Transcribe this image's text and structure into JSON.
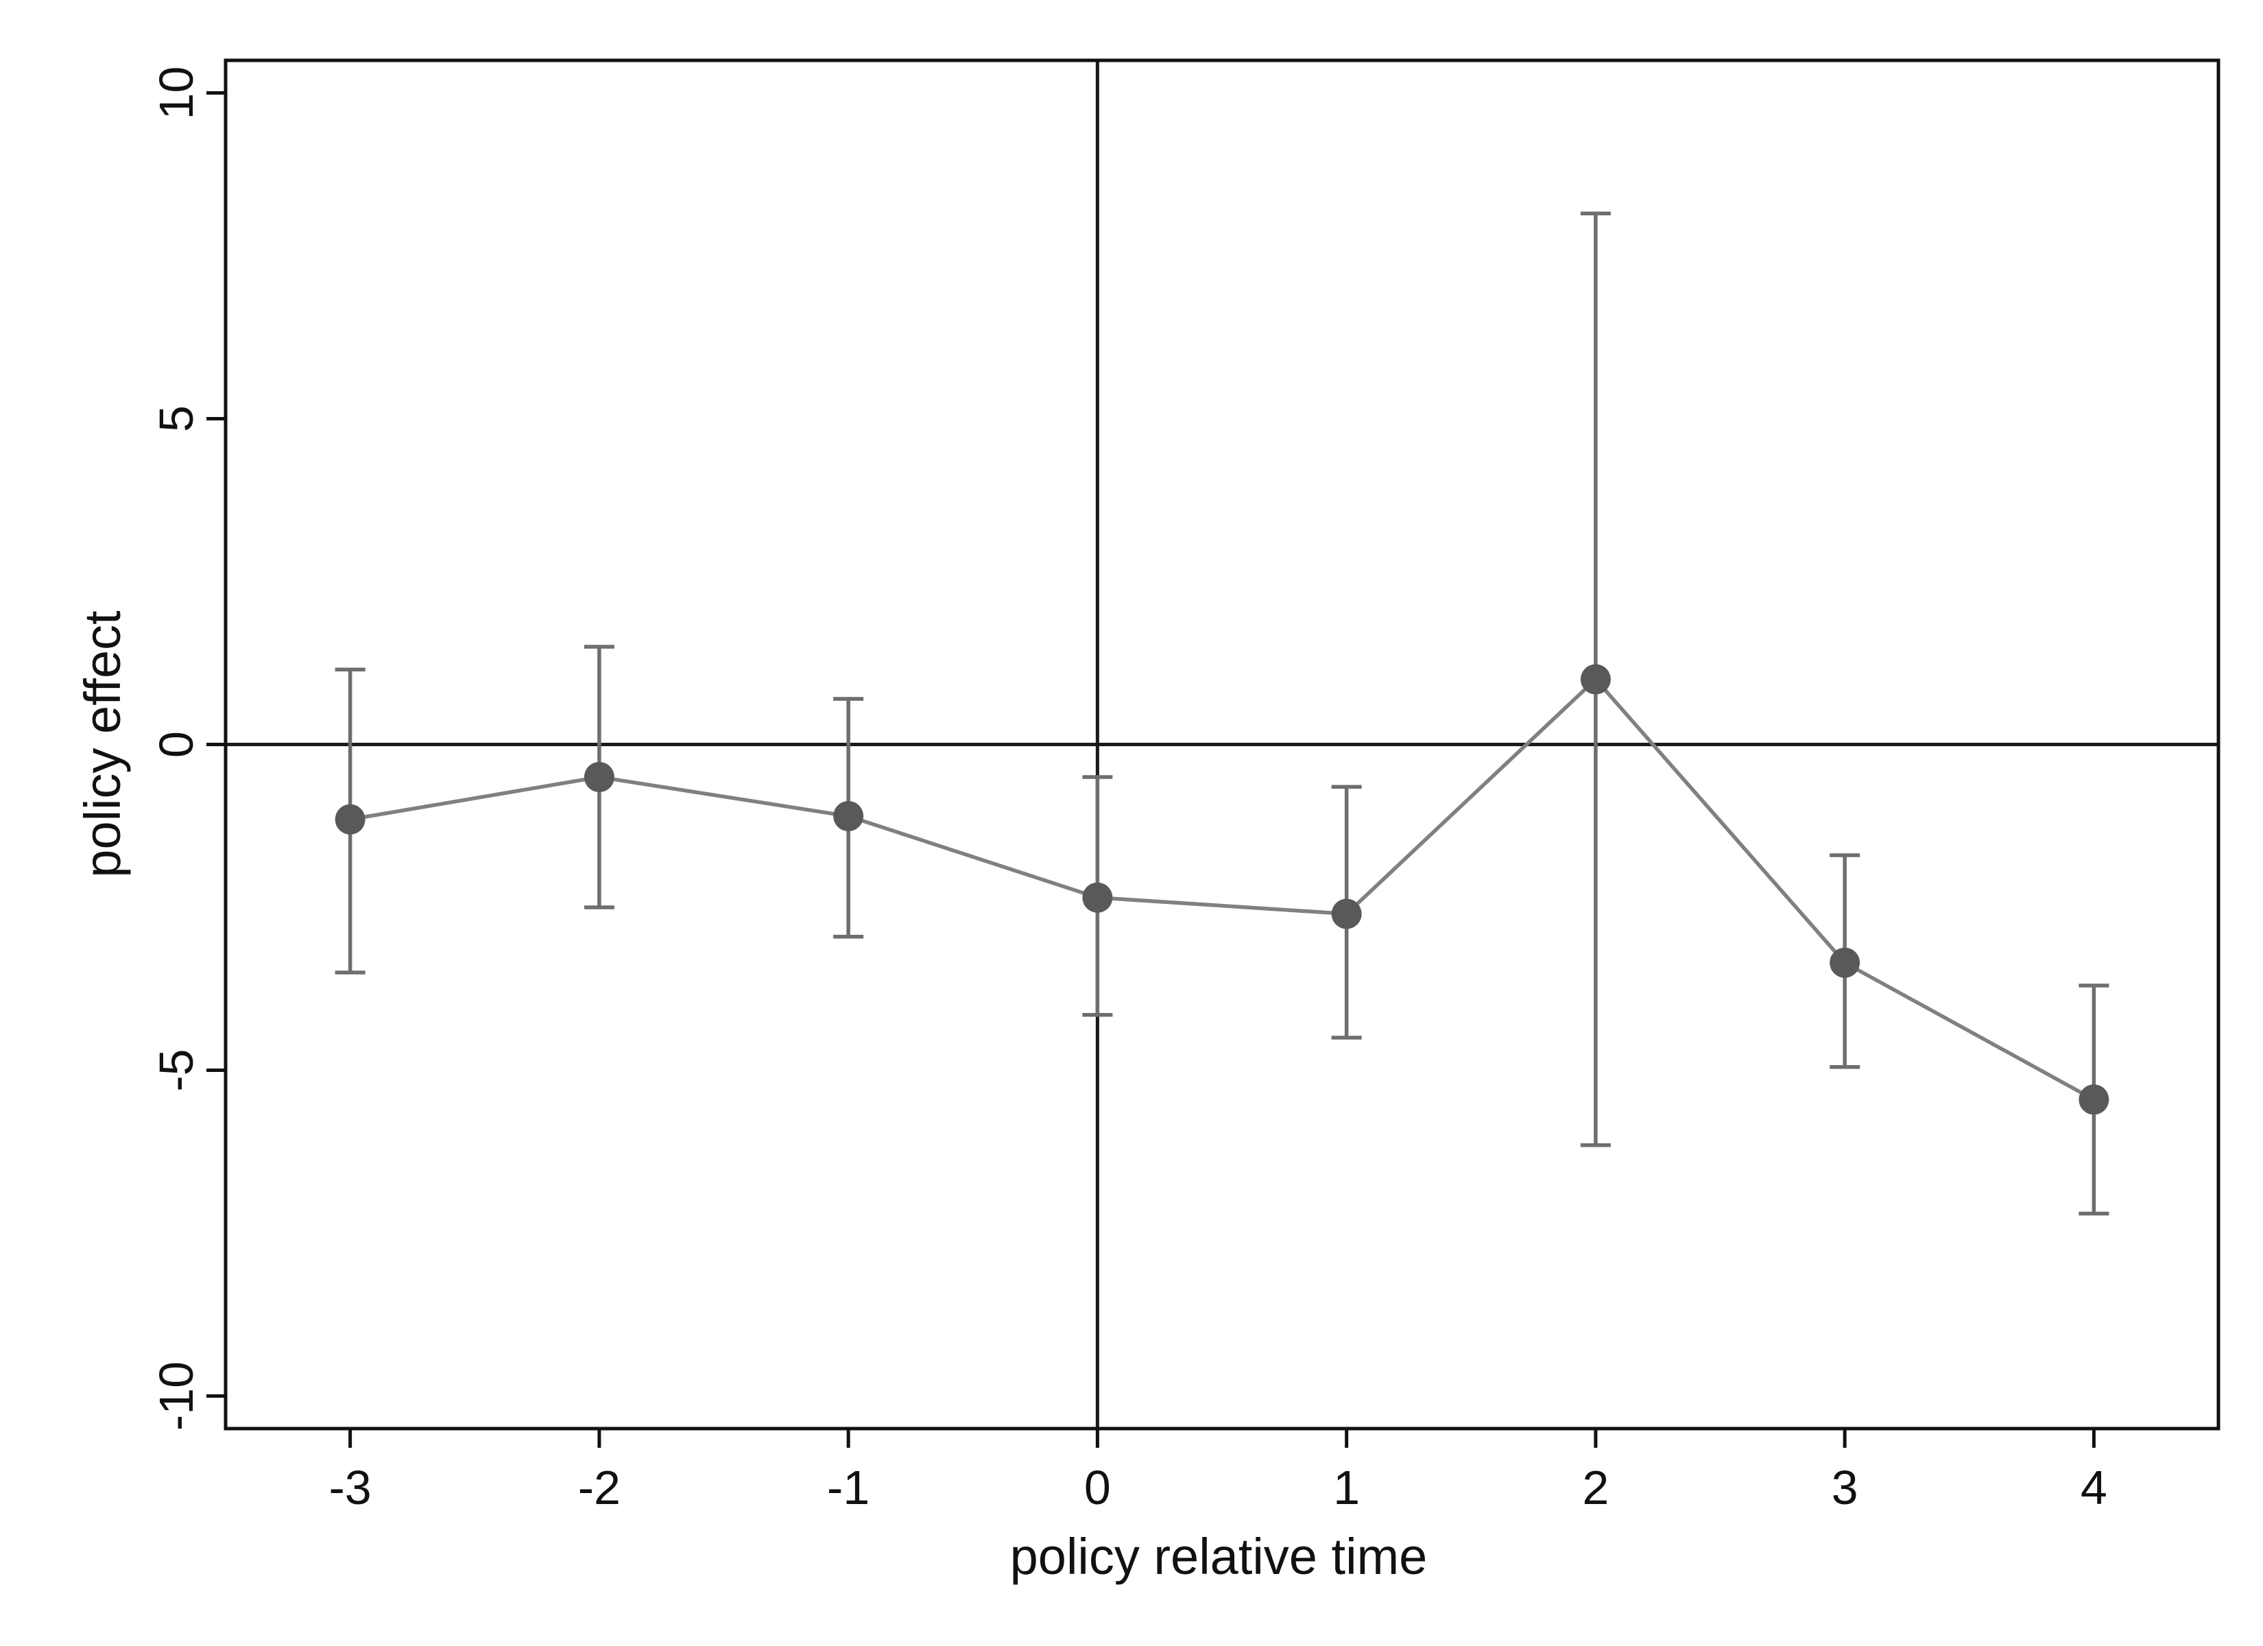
{
  "chart_data": {
    "type": "line",
    "title": "",
    "xlabel": "policy relative time",
    "ylabel": "policy effect",
    "x": [
      -3,
      -2,
      -1,
      0,
      1,
      2,
      3,
      4
    ],
    "series": [
      {
        "values": [
          -1.15,
          -0.5,
          -1.1,
          -2.35,
          -2.6,
          1.0,
          -3.35,
          -5.45
        ],
        "ci_lower": [
          -3.5,
          -2.5,
          -2.95,
          -4.15,
          -4.5,
          -6.15,
          -4.95,
          -7.2
        ],
        "ci_upper": [
          1.15,
          1.5,
          0.7,
          -0.5,
          -0.65,
          8.15,
          -1.7,
          -3.7
        ],
        "color": "#808080",
        "marker_color": "#595959",
        "errorbar_color": "#6e6e6e"
      }
    ],
    "xlim": [
      -3.5,
      4.5
    ],
    "ylim": [
      -10.5,
      10.5
    ],
    "xticks": [
      -3,
      -2,
      -1,
      0,
      1,
      2,
      3,
      4
    ],
    "xtick_labels": [
      "-3",
      "-2",
      "-1",
      "0",
      "1",
      "2",
      "3",
      "4"
    ],
    "yticks": [
      -10,
      -5,
      0,
      5,
      10
    ],
    "ytick_labels": [
      "-10",
      "-5",
      "0",
      "5",
      "10"
    ],
    "reference_lines": {
      "x": 0,
      "y": 0
    },
    "grid": false,
    "legend": "none"
  }
}
